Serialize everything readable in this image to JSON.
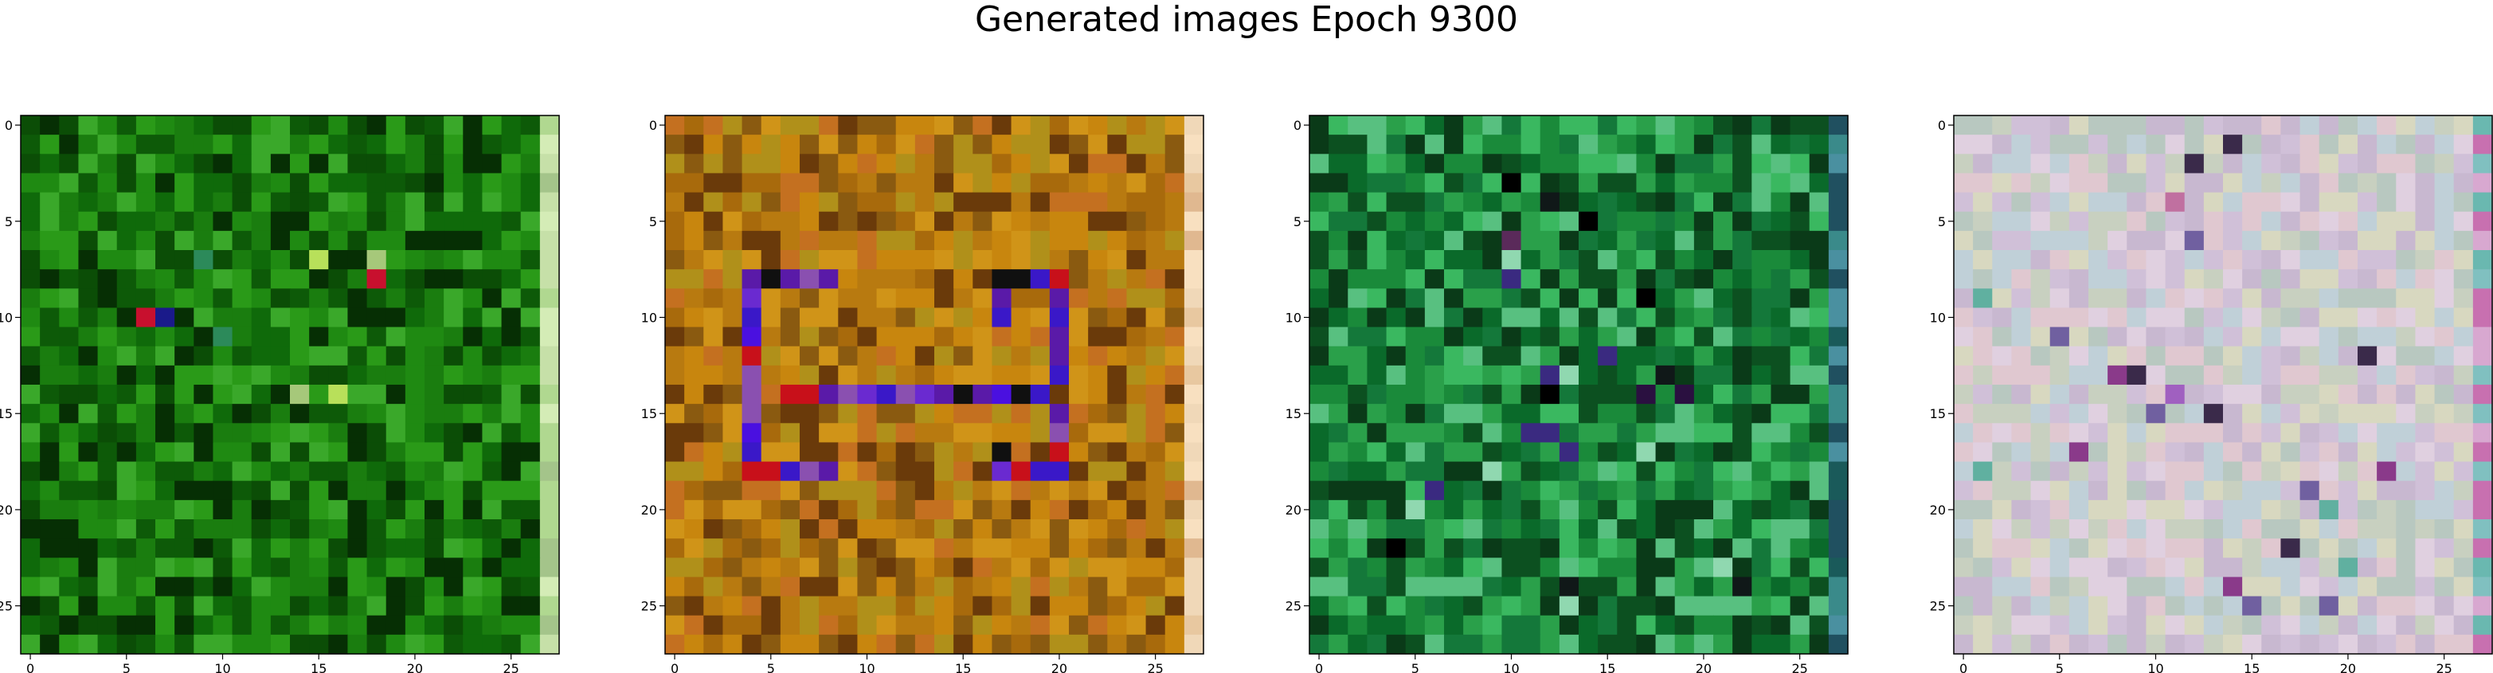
{
  "title": "Generated images Epoch 9300",
  "chart_data": [
    {
      "type": "heatmap",
      "grid": [
        28,
        28
      ],
      "xlim": [
        -0.5,
        27.5
      ],
      "ylim": [
        27.5,
        -0.5
      ],
      "xticks": [
        0,
        5,
        10,
        15,
        20,
        25
      ],
      "yticks": [
        0,
        5,
        10,
        15,
        20,
        25
      ],
      "palette": [
        "#0f6a0a",
        "#1a7d0f",
        "#0d5a08",
        "#2a9a18",
        "#0b4d06",
        "#3aa82a",
        "#1f8a12",
        "#062f04"
      ],
      "accents": {
        "colors": [
          "#c8102e",
          "#1a1a8a",
          "#a6c87a",
          "#b8e05a",
          "#2c8a5a"
        ],
        "pixels": [
          [
            7,
            15
          ],
          [
            7,
            18
          ],
          [
            8,
            18
          ],
          [
            11,
            10
          ],
          [
            10,
            6
          ],
          [
            14,
            14
          ],
          [
            14,
            16
          ],
          [
            7,
            9
          ],
          [
            10,
            7
          ]
        ]
      },
      "right_column": [
        "#a4c48a",
        "#c6e0a8",
        "#b0d890",
        "#d4ecb6"
      ]
    },
    {
      "type": "heatmap",
      "grid": [
        28,
        28
      ],
      "xlim": [
        -0.5,
        27.5
      ],
      "ylim": [
        27.5,
        -0.5
      ],
      "xticks": [
        0,
        5,
        10,
        15,
        20,
        25
      ],
      "yticks": [
        0,
        5,
        10,
        15,
        20,
        25
      ],
      "palette": [
        "#b87a10",
        "#c8860e",
        "#a86a0c",
        "#d09418",
        "#8a5a10",
        "#c47020",
        "#b0901a",
        "#6a3a0a"
      ],
      "accents": {
        "colors": [
          "#5a1aa8",
          "#3a18c8",
          "#6a2ad0",
          "#4a10e0",
          "#8a50b0",
          "#c8101a",
          "#101010"
        ],
        "pixels": [
          [
            8,
            4
          ],
          [
            8,
            5
          ],
          [
            8,
            6
          ],
          [
            8,
            7
          ],
          [
            8,
            8
          ],
          [
            9,
            4
          ],
          [
            10,
            4
          ],
          [
            11,
            4
          ],
          [
            12,
            4
          ],
          [
            13,
            4
          ],
          [
            14,
            4
          ],
          [
            15,
            4
          ],
          [
            16,
            4
          ],
          [
            17,
            4
          ],
          [
            18,
            4
          ],
          [
            18,
            5
          ],
          [
            18,
            6
          ],
          [
            18,
            7
          ],
          [
            18,
            8
          ],
          [
            14,
            6
          ],
          [
            14,
            7
          ],
          [
            14,
            8
          ],
          [
            14,
            9
          ],
          [
            14,
            10
          ],
          [
            14,
            11
          ],
          [
            14,
            12
          ],
          [
            14,
            13
          ],
          [
            14,
            14
          ],
          [
            14,
            15
          ],
          [
            14,
            16
          ],
          [
            14,
            17
          ],
          [
            14,
            18
          ],
          [
            14,
            19
          ],
          [
            8,
            17
          ],
          [
            8,
            18
          ],
          [
            8,
            19
          ],
          [
            8,
            20
          ],
          [
            9,
            20
          ],
          [
            10,
            20
          ],
          [
            11,
            20
          ],
          [
            12,
            20
          ],
          [
            13,
            20
          ],
          [
            15,
            20
          ],
          [
            16,
            20
          ],
          [
            17,
            20
          ],
          [
            18,
            20
          ],
          [
            18,
            17
          ],
          [
            18,
            18
          ],
          [
            18,
            19
          ],
          [
            9,
            17
          ],
          [
            10,
            17
          ],
          [
            17,
            17
          ]
        ]
      },
      "right_column": [
        "#f0d8b8",
        "#e8c8a0",
        "#f8e0c0",
        "#e0b890"
      ]
    },
    {
      "type": "heatmap",
      "grid": [
        28,
        28
      ],
      "xlim": [
        -0.5,
        27.5
      ],
      "ylim": [
        27.5,
        -0.5
      ],
      "xticks": [
        0,
        5,
        10,
        15,
        20,
        25
      ],
      "yticks": [
        0,
        5,
        10,
        15,
        20,
        25
      ],
      "palette": [
        "#1a8a3a",
        "#0a6a2a",
        "#2aa04a",
        "#0c5020",
        "#3ab860",
        "#14783a",
        "#0a3a18",
        "#58c080"
      ],
      "accents": {
        "colors": [
          "#000000",
          "#101818",
          "#2a1040",
          "#3a2a80",
          "#5a2a5a",
          "#90d8b0",
          "#1a3aa0"
        ],
        "pixels": [
          [
            6,
            10
          ],
          [
            7,
            10
          ],
          [
            8,
            10
          ],
          [
            13,
            12
          ],
          [
            13,
            13
          ],
          [
            14,
            12
          ],
          [
            16,
            11
          ],
          [
            16,
            12
          ],
          [
            17,
            13
          ],
          [
            17,
            17
          ],
          [
            14,
            17
          ],
          [
            12,
            15
          ],
          [
            13,
            18
          ],
          [
            14,
            19
          ],
          [
            18,
            9
          ],
          [
            19,
            6
          ],
          [
            20,
            5
          ],
          [
            22,
            4
          ],
          [
            24,
            13
          ],
          [
            25,
            13
          ],
          [
            23,
            21
          ],
          [
            24,
            22
          ],
          [
            3,
            10
          ],
          [
            4,
            12
          ],
          [
            5,
            14
          ],
          [
            9,
            17
          ]
        ]
      },
      "right_column": [
        "#1a5a5a",
        "#3a8a8a",
        "#205060",
        "#4a90a0"
      ]
    },
    {
      "type": "heatmap",
      "grid": [
        28,
        28
      ],
      "xlim": [
        -0.5,
        27.5
      ],
      "ylim": [
        27.5,
        -0.5
      ],
      "xticks": [
        0,
        5,
        10,
        15,
        20,
        25
      ],
      "yticks": [
        0,
        5,
        10,
        15,
        20,
        25
      ],
      "palette": [
        "#d0c0d8",
        "#c8d0c0",
        "#e0c8d0",
        "#c0d0d8",
        "#d8d8c0",
        "#c8b8d0",
        "#b8c8c0",
        "#e0d0e0"
      ],
      "accents": {
        "colors": [
          "#8a3a8a",
          "#3a2a4a",
          "#a060c0",
          "#60b0a0",
          "#c070a0",
          "#7060a0"
        ],
        "pixels": [
          [
            1,
            14
          ],
          [
            2,
            12
          ],
          [
            4,
            11
          ],
          [
            6,
            12
          ],
          [
            9,
            1
          ],
          [
            11,
            5
          ],
          [
            13,
            9
          ],
          [
            14,
            11
          ],
          [
            15,
            10
          ],
          [
            15,
            13
          ],
          [
            17,
            6
          ],
          [
            18,
            1
          ],
          [
            18,
            22
          ],
          [
            19,
            18
          ],
          [
            20,
            19
          ],
          [
            22,
            17
          ],
          [
            23,
            20
          ],
          [
            24,
            14
          ],
          [
            25,
            15
          ],
          [
            25,
            19
          ],
          [
            12,
            21
          ],
          [
            13,
            8
          ]
        ]
      },
      "right_column": [
        "#6ab8b0",
        "#c870b0",
        "#80c0c0",
        "#d8a8d0"
      ]
    }
  ]
}
